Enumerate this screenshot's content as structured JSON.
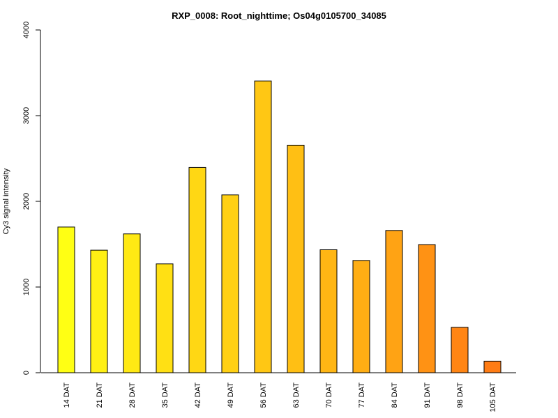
{
  "chart_data": {
    "type": "bar",
    "title": "RXP_0008: Root_nighttime; Os04g0105700_34085",
    "xlabel": "",
    "ylabel": "Cy3 signal intensity",
    "ylim": [
      0,
      4000
    ],
    "yticks": [
      0,
      1000,
      2000,
      3000,
      4000
    ],
    "categories": [
      "14 DAT",
      "21 DAT",
      "28 DAT",
      "35 DAT",
      "42 DAT",
      "49 DAT",
      "56 DAT",
      "63 DAT",
      "70 DAT",
      "77 DAT",
      "84 DAT",
      "91 DAT",
      "98 DAT",
      "105 DAT"
    ],
    "values": [
      1700,
      1430,
      1620,
      1270,
      2395,
      2075,
      3405,
      2655,
      1435,
      1310,
      1660,
      1495,
      530,
      135
    ],
    "colors": [
      "#FFFF14",
      "#FFF014",
      "#FFE914",
      "#FFE014",
      "#FFD714",
      "#FFD014",
      "#FFC714",
      "#FFBF14",
      "#FFB614",
      "#FFAE14",
      "#FFA314",
      "#FF9214",
      "#FF8514",
      "#FF7C14"
    ],
    "grid": false,
    "legend": "none"
  }
}
